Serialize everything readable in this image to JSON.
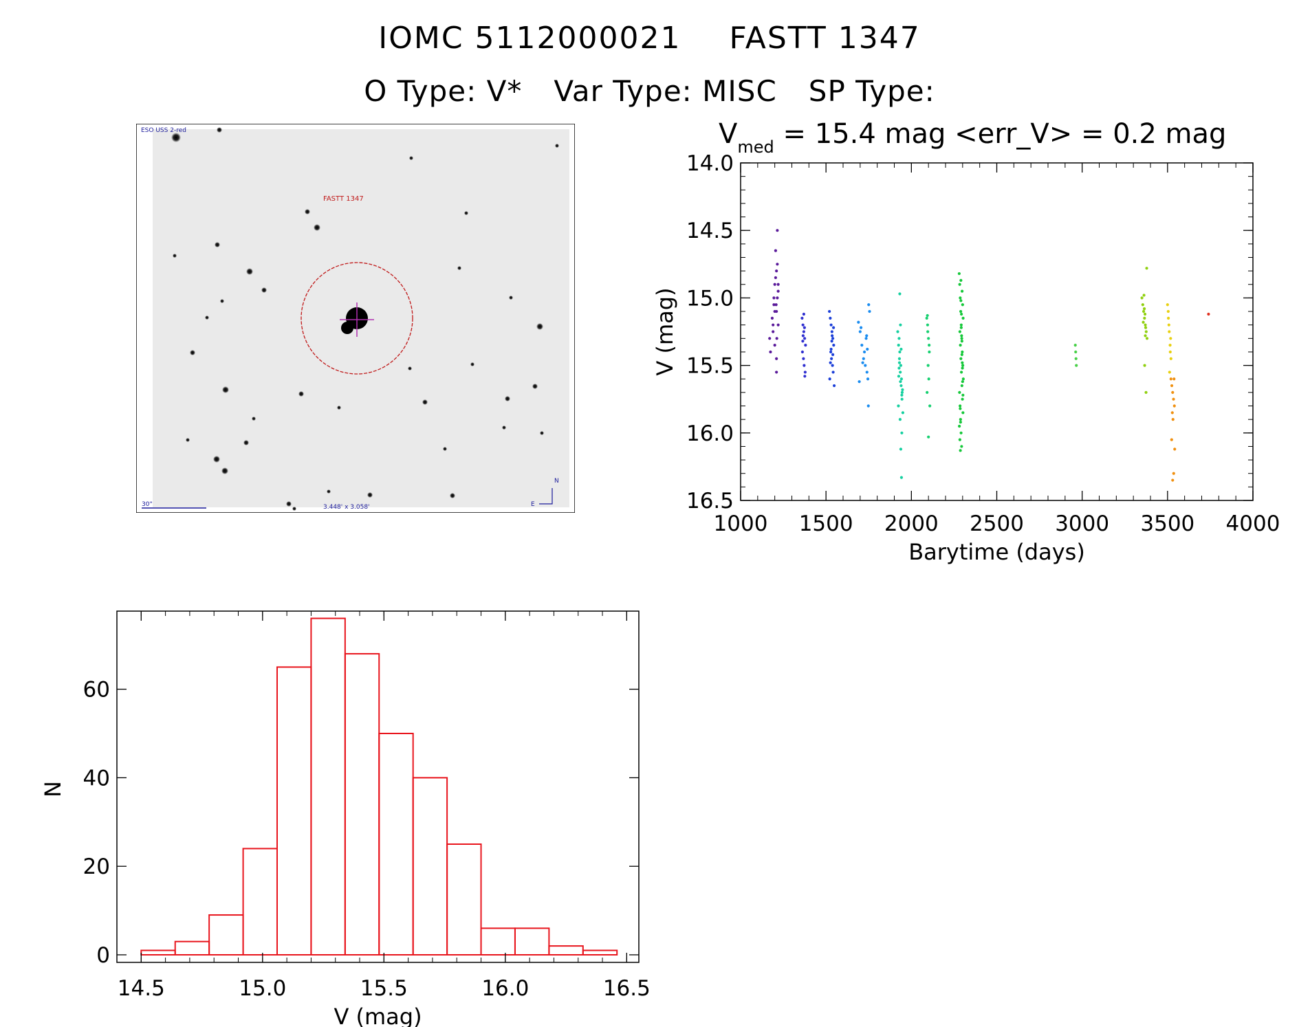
{
  "header": {
    "object_id": "IOMC 5112000021",
    "name": "FASTT 1347",
    "otype": "O Type: V*",
    "vartype": "Var Type: MISC",
    "sptype": "SP Type:"
  },
  "image_panel": {
    "survey_label": "ESO USS 2-red",
    "target_label": "FASTT 1347",
    "scale_label": "30\"",
    "fov_label": "3.448' x 3.058'",
    "north_label": "N",
    "east_label": "E"
  },
  "chart_data": [
    {
      "type": "scatter",
      "title": "V_med = 15.4 mag <err_V> = 0.2 mag",
      "title_parts": {
        "v": "V",
        "med": "med",
        "rest": " = 15.4 mag <err_V> = 0.2 mag"
      },
      "xlabel": "Barytime (days)",
      "ylabel": "V (mag)",
      "xlim": [
        1000,
        4000
      ],
      "ylim": [
        16.5,
        14.0
      ],
      "y_inverted": true,
      "xticks": [
        1000,
        1500,
        2000,
        2500,
        3000,
        3500,
        4000
      ],
      "yticks": [
        "14.0",
        "14.5",
        "15.0",
        "15.5",
        "16.0",
        "16.5"
      ],
      "grid": false,
      "groups": [
        {
          "color": "#5a1a9a",
          "x": [
            1170,
            1175,
            1190,
            1195,
            1200,
            1205,
            1210,
            1215,
            1220,
            1185,
            1200,
            1210,
            1220,
            1205,
            1195,
            1215,
            1210,
            1200,
            1190,
            1210,
            1220,
            1212,
            1208,
            1215
          ],
          "y": [
            15.3,
            15.4,
            15.2,
            15.0,
            14.9,
            14.85,
            15.1,
            15.0,
            14.95,
            15.15,
            15.35,
            15.45,
            15.2,
            14.65,
            15.05,
            14.5,
            15.55,
            15.1,
            15.25,
            14.8,
            14.9,
            15.3,
            15.05,
            14.75
          ]
        },
        {
          "color": "#3030d0",
          "x": [
            1360,
            1365,
            1370,
            1375,
            1380,
            1362,
            1368,
            1372,
            1378,
            1366,
            1374,
            1370,
            1364,
            1376
          ],
          "y": [
            15.15,
            15.2,
            15.25,
            15.3,
            15.35,
            15.4,
            15.45,
            15.5,
            15.55,
            15.28,
            15.22,
            15.12,
            15.32,
            15.58
          ]
        },
        {
          "color": "#1c3fd8",
          "x": [
            1520,
            1525,
            1530,
            1535,
            1540,
            1545,
            1528,
            1532,
            1538,
            1542,
            1522,
            1548,
            1536,
            1530,
            1526,
            1544,
            1534,
            1540
          ],
          "y": [
            15.1,
            15.15,
            15.2,
            15.25,
            15.3,
            15.35,
            15.4,
            15.45,
            15.5,
            15.55,
            15.6,
            15.65,
            15.28,
            15.38,
            15.48,
            15.22,
            15.32,
            15.42
          ]
        },
        {
          "color": "#1a8cf0",
          "x": [
            1690,
            1700,
            1710,
            1720,
            1730,
            1740,
            1750,
            1745,
            1735,
            1725,
            1715,
            1705,
            1695,
            1755,
            1748,
            1742,
            1738
          ],
          "y": [
            15.18,
            15.25,
            15.35,
            15.45,
            15.5,
            15.55,
            15.05,
            15.6,
            15.3,
            15.4,
            15.48,
            15.22,
            15.62,
            15.1,
            15.8,
            15.38,
            15.28
          ]
        },
        {
          "color": "#16d0a0",
          "x": [
            1920,
            1925,
            1930,
            1935,
            1940,
            1945,
            1950,
            1928,
            1932,
            1938,
            1942,
            1946,
            1924,
            1934,
            1944,
            1936,
            1926,
            1948,
            1930,
            1940,
            1938,
            1942,
            1932,
            1936,
            1944,
            1928
          ],
          "y": [
            15.25,
            15.35,
            15.45,
            15.55,
            15.65,
            15.75,
            15.85,
            15.3,
            15.4,
            15.5,
            15.6,
            15.7,
            15.8,
            15.9,
            16.0,
            15.2,
            15.58,
            15.68,
            15.48,
            15.38,
            16.12,
            16.33,
            14.97,
            15.62,
            15.72,
            15.52
          ]
        },
        {
          "color": "#16d070",
          "x": [
            2090,
            2095,
            2100,
            2105,
            2098,
            2102,
            2092,
            2108,
            2096,
            2104,
            2100,
            2094
          ],
          "y": [
            15.15,
            15.2,
            15.3,
            15.4,
            15.5,
            15.6,
            15.7,
            15.8,
            15.25,
            15.35,
            16.03,
            15.13
          ]
        },
        {
          "color": "#16c83a",
          "x": [
            2280,
            2283,
            2286,
            2289,
            2292,
            2295,
            2298,
            2301,
            2304,
            2282,
            2285,
            2288,
            2291,
            2294,
            2297,
            2300,
            2303,
            2284,
            2287,
            2290,
            2293,
            2296,
            2299,
            2302,
            2281,
            2284,
            2287,
            2290,
            2293,
            2296,
            2299,
            2302,
            2288,
            2292,
            2296,
            2300,
            2286,
            2290,
            2294,
            2298
          ],
          "y": [
            14.82,
            14.9,
            15.0,
            15.1,
            15.2,
            15.3,
            15.4,
            15.5,
            15.6,
            15.7,
            15.8,
            15.9,
            16.0,
            16.1,
            14.95,
            15.05,
            15.15,
            15.25,
            15.35,
            15.45,
            15.55,
            15.65,
            15.75,
            15.85,
            15.95,
            16.05,
            16.13,
            14.87,
            15.12,
            15.32,
            15.52,
            15.72,
            15.92,
            15.22,
            15.42,
            15.62,
            15.82,
            15.02,
            15.28,
            15.48
          ]
        },
        {
          "color": "#48d048",
          "x": [
            2960,
            2962,
            2964,
            2966
          ],
          "y": [
            15.35,
            15.4,
            15.45,
            15.5
          ]
        },
        {
          "color": "#90d010",
          "x": [
            3350,
            3355,
            3360,
            3365,
            3370,
            3375,
            3380,
            3362,
            3368,
            3372,
            3358,
            3378,
            3366,
            3374,
            3364,
            3370
          ],
          "y": [
            15.0,
            15.05,
            15.1,
            15.15,
            15.2,
            15.25,
            15.3,
            14.98,
            15.12,
            15.22,
            15.18,
            14.78,
            15.5,
            15.7,
            15.08,
            15.28
          ]
        },
        {
          "color": "#e8d010",
          "x": [
            3500,
            3505,
            3510,
            3515,
            3520,
            3512,
            3508,
            3518,
            3504,
            3516
          ],
          "y": [
            15.05,
            15.15,
            15.25,
            15.35,
            15.45,
            15.55,
            15.2,
            15.3,
            15.1,
            15.4
          ]
        },
        {
          "color": "#f09010",
          "x": [
            3520,
            3525,
            3530,
            3535,
            3540,
            3528,
            3532,
            3538,
            3524,
            3542,
            3536,
            3530
          ],
          "y": [
            15.6,
            15.65,
            15.7,
            15.75,
            15.8,
            15.85,
            15.9,
            15.6,
            16.05,
            16.12,
            16.3,
            16.35
          ]
        },
        {
          "color": "#e03020",
          "x": [
            3740
          ],
          "y": [
            15.12
          ]
        }
      ]
    },
    {
      "type": "bar",
      "xlabel": "V (mag)",
      "ylabel": "N",
      "xlim": [
        14.4,
        16.55
      ],
      "ylim": [
        0,
        79
      ],
      "xticks": [
        "14.5",
        "15.0",
        "15.5",
        "16.0",
        "16.5"
      ],
      "yticks": [
        "0",
        "20",
        "40",
        "60"
      ],
      "bin_edges": [
        14.5,
        14.64,
        14.78,
        14.92,
        15.06,
        15.2,
        15.34,
        15.48,
        15.62,
        15.76,
        15.9,
        16.04,
        16.18,
        16.32,
        16.46
      ],
      "values": [
        1,
        3,
        9,
        24,
        65,
        76,
        68,
        50,
        40,
        25,
        6,
        6,
        2,
        1
      ],
      "bar_color": "#e8141c"
    }
  ]
}
